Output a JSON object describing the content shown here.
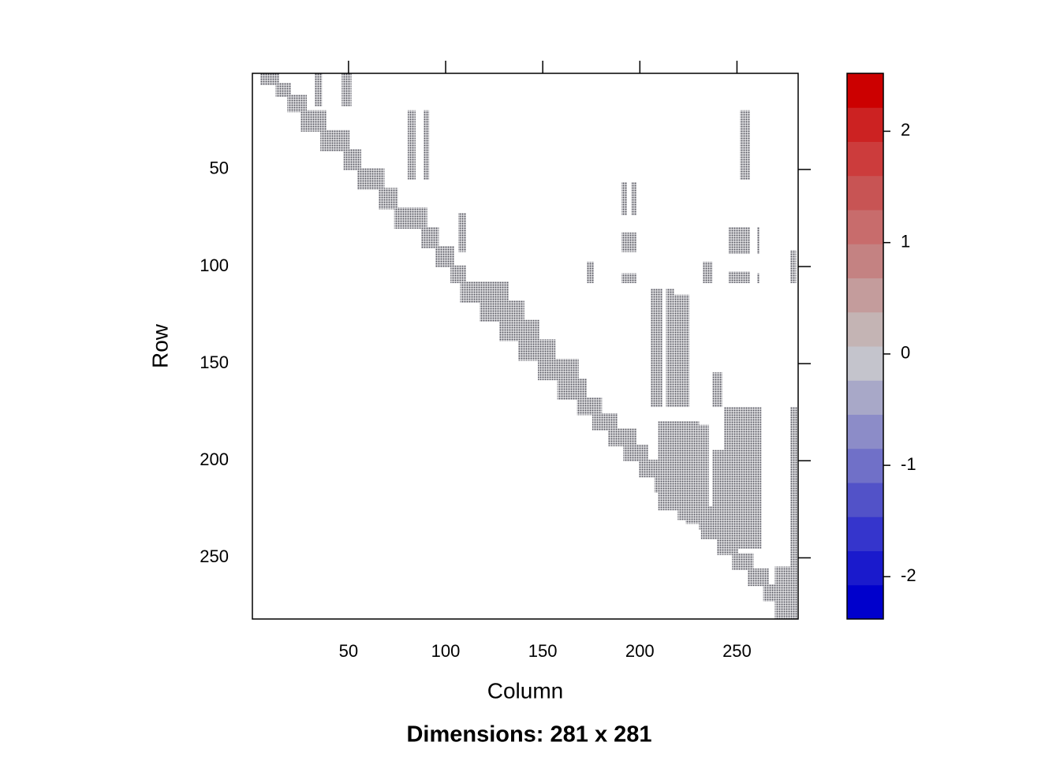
{
  "chart_data": {
    "type": "sparsity",
    "title": "Dimensions: 281 x 281",
    "xlabel": "Column",
    "ylabel": "Row",
    "xlim": [
      0.5,
      281.5
    ],
    "ylim": [
      0.5,
      281.5
    ],
    "y_reversed": true,
    "xticks": [
      50,
      100,
      150,
      200,
      250
    ],
    "yticks": [
      50,
      100,
      150,
      200,
      250
    ],
    "color": "#55555f",
    "blocks": [
      [
        5,
        14,
        1,
        6
      ],
      [
        13,
        20,
        6,
        12
      ],
      [
        19,
        28,
        12,
        20
      ],
      [
        26,
        38,
        20,
        30
      ],
      [
        36,
        50,
        30,
        40
      ],
      [
        48,
        56,
        40,
        50
      ],
      [
        55,
        68,
        50,
        60
      ],
      [
        66,
        75,
        60,
        70
      ],
      [
        74,
        90,
        70,
        80
      ],
      [
        88,
        96,
        80,
        90
      ],
      [
        95,
        104,
        90,
        100
      ],
      [
        103,
        110,
        100,
        108
      ],
      [
        108,
        132,
        108,
        118
      ],
      [
        118,
        140,
        118,
        128
      ],
      [
        128,
        148,
        128,
        138
      ],
      [
        138,
        156,
        138,
        148
      ],
      [
        148,
        168,
        148,
        158
      ],
      [
        158,
        172,
        158,
        168
      ],
      [
        168,
        180,
        168,
        176
      ],
      [
        176,
        188,
        176,
        184
      ],
      [
        184,
        198,
        184,
        192
      ],
      [
        192,
        204,
        192,
        200
      ],
      [
        200,
        212,
        200,
        208
      ],
      [
        208,
        222,
        208,
        216
      ],
      [
        216,
        230,
        216,
        224
      ],
      [
        224,
        238,
        224,
        232
      ],
      [
        232,
        244,
        232,
        240
      ],
      [
        240,
        250,
        240,
        248
      ],
      [
        248,
        258,
        248,
        256
      ],
      [
        256,
        266,
        256,
        264
      ],
      [
        264,
        276,
        264,
        272
      ],
      [
        272,
        281,
        272,
        281
      ],
      [
        33,
        36,
        1,
        17
      ],
      [
        47,
        51,
        1,
        17
      ],
      [
        81,
        84,
        20,
        55
      ],
      [
        89,
        91,
        20,
        55
      ],
      [
        107,
        110,
        73,
        92
      ],
      [
        173,
        176,
        98,
        108
      ],
      [
        191,
        193,
        57,
        73
      ],
      [
        196,
        198,
        57,
        73
      ],
      [
        191,
        198,
        83,
        92
      ],
      [
        191,
        198,
        104,
        108
      ],
      [
        252,
        256,
        20,
        55
      ],
      [
        246,
        256,
        80,
        93
      ],
      [
        261,
        261,
        80,
        93
      ],
      [
        233,
        237,
        98,
        108
      ],
      [
        246,
        256,
        103,
        108
      ],
      [
        261,
        261,
        104,
        108
      ],
      [
        278,
        280,
        92,
        108
      ],
      [
        206,
        211,
        112,
        172
      ],
      [
        214,
        217,
        112,
        172
      ],
      [
        218,
        225,
        115,
        172
      ],
      [
        238,
        242,
        155,
        172
      ],
      [
        231,
        235,
        182,
        235
      ],
      [
        244,
        262,
        173,
        245
      ],
      [
        238,
        243,
        195,
        240
      ],
      [
        210,
        225,
        180,
        225
      ],
      [
        220,
        230,
        180,
        230
      ],
      [
        278,
        281,
        173,
        265
      ],
      [
        270,
        281,
        255,
        281
      ]
    ],
    "colorbar": {
      "lim": [
        -2.38,
        2.52
      ],
      "ticks": [
        -2,
        -1,
        0,
        1,
        2
      ],
      "colors": [
        "#0000cc",
        "#1a1acc",
        "#3535cc",
        "#5252c8",
        "#7070c8",
        "#8c8cc8",
        "#a8a8c8",
        "#c4c4cc",
        "#c4b4b4",
        "#c49c9c",
        "#c48282",
        "#c86c6c",
        "#c85454",
        "#cc3c3c",
        "#cc2222",
        "#cc0000"
      ]
    }
  }
}
